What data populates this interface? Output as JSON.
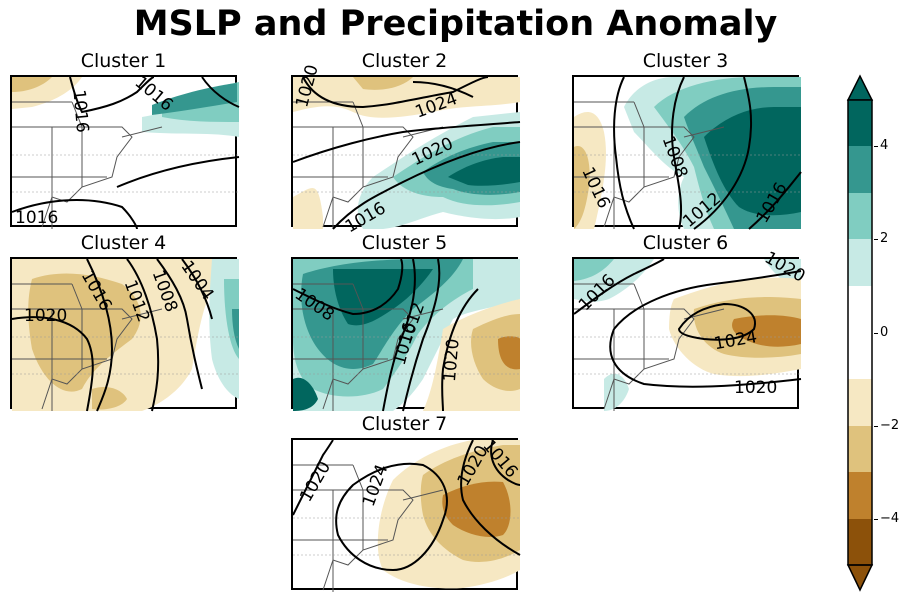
{
  "figure": {
    "title": "MSLP and Precipitation Anomaly"
  },
  "panels": [
    {
      "title": "Cluster 1",
      "contour_labels": [
        "1016",
        "1016",
        "1016"
      ]
    },
    {
      "title": "Cluster 2",
      "contour_labels": [
        "1020",
        "1024",
        "1020",
        "1016"
      ]
    },
    {
      "title": "Cluster 3",
      "contour_labels": [
        "1016",
        "1008",
        "1012",
        "1016"
      ]
    },
    {
      "title": "Cluster 4",
      "contour_labels": [
        "1020",
        "1016",
        "1012",
        "1008",
        "1004"
      ]
    },
    {
      "title": "Cluster 5",
      "contour_labels": [
        "1008",
        "1012",
        "1016",
        "1020"
      ]
    },
    {
      "title": "Cluster 6",
      "contour_labels": [
        "1016",
        "1024",
        "1020",
        "1020"
      ]
    },
    {
      "title": "Cluster 7",
      "contour_labels": [
        "1020",
        "1024",
        "1020",
        "1016"
      ]
    }
  ],
  "colorbar": {
    "ticks": [
      "4",
      "2",
      "0",
      "−2",
      "−4"
    ],
    "colors": {
      "dark_teal": "#01665e",
      "teal": "#35978f",
      "mid_teal": "#80cdc1",
      "light_teal": "#c7eae5",
      "white": "#ffffff",
      "light_tan": "#f6e8c3",
      "tan": "#dfc27d",
      "brown": "#bf812d",
      "dark_brown": "#8c510a"
    }
  },
  "map_style": {
    "land_lines": "#555555",
    "contour_color": "#000000"
  }
}
